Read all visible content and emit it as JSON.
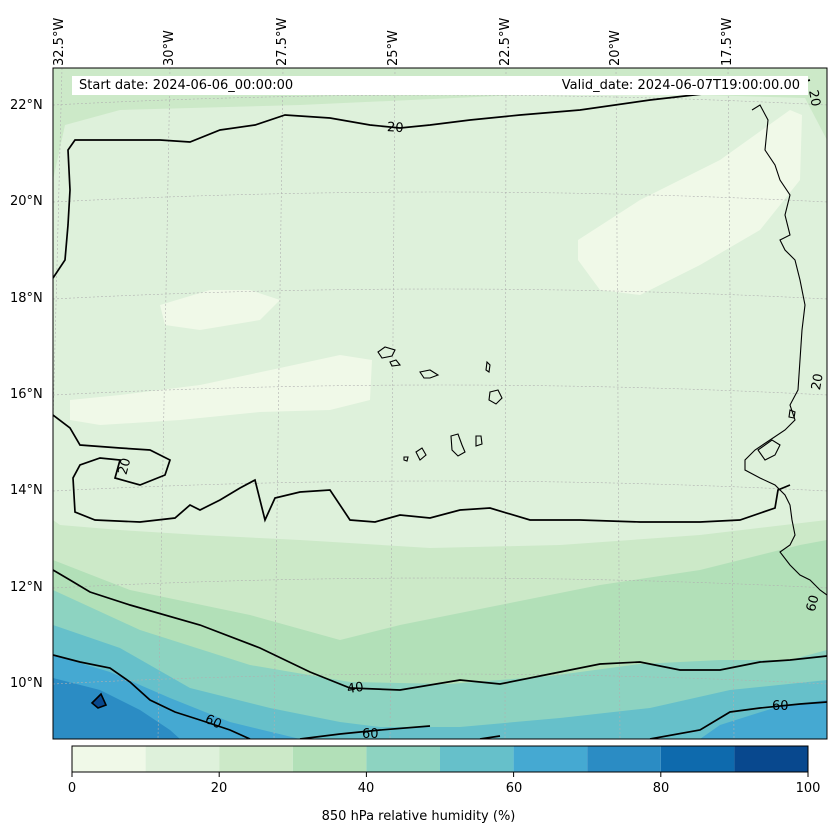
{
  "header": {
    "start_date": "Start date: 2024-06-06_00:00:00",
    "valid_date": "Valid_date: 2024-06-07T19:00:00.00"
  },
  "map": {
    "longitude_labels": [
      "32.5°W",
      "30°W",
      "27.5°W",
      "25°W",
      "22.5°W",
      "20°W",
      "17.5°W"
    ],
    "latitude_labels": [
      "22°N",
      "20°N",
      "18°N",
      "16°N",
      "14°N",
      "12°N",
      "10°N"
    ],
    "contour_labels": [
      "20",
      "20",
      "20",
      "20",
      "40",
      "60",
      "60",
      "60",
      "60"
    ],
    "colors": {
      "band_0_10": "#f0f9e8",
      "band_10_20": "#def1db",
      "band_20_30": "#cce9c8",
      "band_30_40": "#b2e0b8",
      "band_40_50": "#8dd3c1",
      "band_50_60": "#66c0ca",
      "band_60_70": "#45a9d2",
      "band_70_80": "#2b8cc4",
      "band_80_90": "#0e6aad",
      "band_90_100": "#08488e",
      "coastline": "#000000",
      "contour": "#000000"
    }
  },
  "colorbar": {
    "ticks": [
      "0",
      "20",
      "40",
      "60",
      "80",
      "100"
    ],
    "label": "850 hPa relative humidity (%)"
  }
}
